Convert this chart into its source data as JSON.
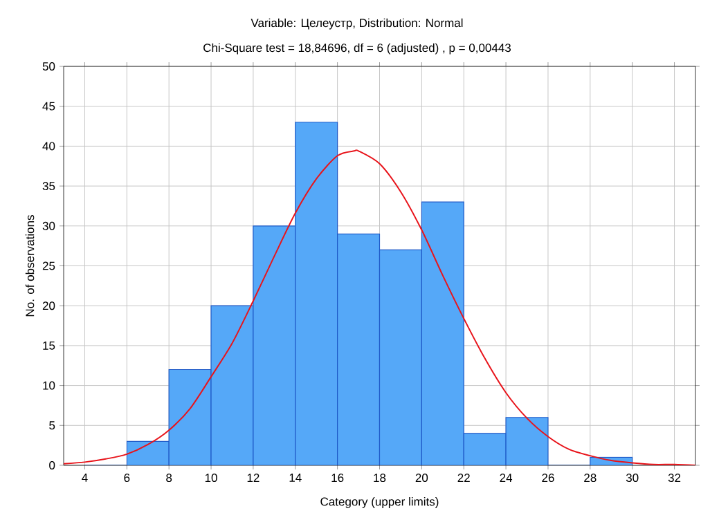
{
  "chart_data": {
    "type": "histogram",
    "title": "Variable: Целеустр, Distribution: Normal",
    "subtitle": "Chi-Square test = 18,84696, df = 6 (adjusted) , p = 0,00443",
    "xlabel": "Category (upper limits)",
    "ylabel": "No. of observations",
    "bins": [
      4,
      6,
      8,
      10,
      12,
      14,
      16,
      18,
      20,
      22,
      24,
      26,
      28,
      30
    ],
    "values": [
      0,
      3,
      12,
      20,
      30,
      43,
      29,
      27,
      33,
      4,
      6,
      0,
      1
    ],
    "color": "#55a8f8",
    "series": [
      {
        "type": "line",
        "color": "#e8141b",
        "x": [
          3,
          4,
          5,
          6,
          7,
          8,
          9,
          10,
          11,
          12,
          13,
          14,
          15,
          16,
          16.8,
          17,
          18,
          19,
          20,
          21,
          22,
          23,
          24,
          25,
          26,
          27,
          28,
          29,
          30,
          31,
          32,
          33
        ],
        "values": [
          0.2,
          0.4,
          0.8,
          1.4,
          2.6,
          4.4,
          7.1,
          11.1,
          15.3,
          20.6,
          26.2,
          31.6,
          35.9,
          38.8,
          39.4,
          39.4,
          37.8,
          34.3,
          29.5,
          23.8,
          18.4,
          13.4,
          9.1,
          5.9,
          3.6,
          2,
          1.2,
          0.6,
          0.3,
          0.1,
          0.1,
          0
        ]
      }
    ],
    "xlim": [
      3,
      33
    ],
    "ylim": [
      0,
      50
    ],
    "xticks": [
      4,
      6,
      8,
      10,
      12,
      14,
      16,
      18,
      20,
      22,
      24,
      26,
      28,
      30,
      32
    ],
    "yticks": [
      0,
      5,
      10,
      15,
      20,
      25,
      30,
      35,
      40,
      45,
      50
    ],
    "grid": true
  }
}
